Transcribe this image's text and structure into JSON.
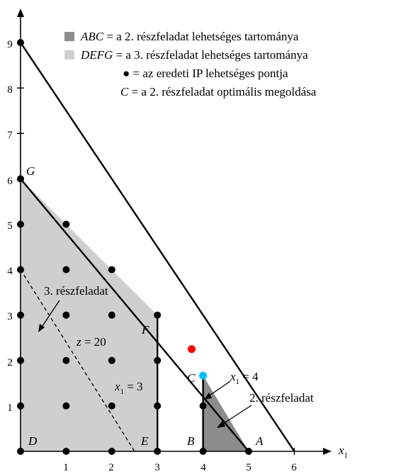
{
  "axes": {
    "x_label_main": "x",
    "x_label_sub": "1",
    "x_ticks": [
      "1",
      "2",
      "3",
      "4",
      "5",
      "6"
    ],
    "y_ticks": [
      "1",
      "2",
      "3",
      "4",
      "5",
      "6",
      "7",
      "8",
      "9"
    ]
  },
  "legend": {
    "items": [
      {
        "prefix": "ABC",
        "text": " = a 2. részfeladat lehetséges tartománya",
        "swatch_color": "#8c8c8c"
      },
      {
        "prefix": "DEFG",
        "text": " = a 3. részfeladat lehetséges tartománya",
        "swatch_color": "#cfcfcf"
      },
      {
        "prefix": "●",
        "text": " = az eredeti IP lehetséges pontja",
        "swatch_color": ""
      },
      {
        "prefix": "C",
        "text": " = a 2. részfeladat optimális megoldása",
        "swatch_color": ""
      }
    ]
  },
  "point_labels": {
    "A": "A",
    "B": "B",
    "C": "C",
    "D": "D",
    "E": "E",
    "F": "F",
    "G": "G"
  },
  "annotations": {
    "subproblem3": "3. részfeladat",
    "subproblem2": "2. részfeladat",
    "z_label_var": "z",
    "z_label_eq": " = 20",
    "x1_eq_3_var": "x",
    "x1_eq_3_sub": "1",
    "x1_eq_3_rest": " = 3",
    "x1_eq_4_var": "x",
    "x1_eq_4_sub": "1",
    "x1_eq_4_rest": " = 4"
  },
  "colors": {
    "region_abc": "#8c8c8c",
    "region_defg": "#cfcfcf",
    "intersection_point": "#ff0000",
    "optimal_point": "#00bfff"
  },
  "chart_data": {
    "type": "scatter",
    "x_range": [
      0,
      6
    ],
    "y_range": [
      0,
      9
    ],
    "lattice_points": [
      [
        0,
        0
      ],
      [
        1,
        0
      ],
      [
        2,
        0
      ],
      [
        3,
        0
      ],
      [
        4,
        0
      ],
      [
        5,
        0
      ],
      [
        0,
        1
      ],
      [
        1,
        1
      ],
      [
        2,
        1
      ],
      [
        3,
        1
      ],
      [
        4,
        1
      ],
      [
        0,
        2
      ],
      [
        1,
        2
      ],
      [
        2,
        2
      ],
      [
        3,
        2
      ],
      [
        0,
        3
      ],
      [
        1,
        3
      ],
      [
        2,
        3
      ],
      [
        3,
        3
      ],
      [
        0,
        4
      ],
      [
        1,
        4
      ],
      [
        2,
        4
      ],
      [
        0,
        5
      ],
      [
        1,
        5
      ],
      [
        0,
        6
      ],
      [
        0,
        9
      ]
    ],
    "region_ABC": [
      [
        4,
        0
      ],
      [
        5,
        0
      ],
      [
        4,
        1.667
      ]
    ],
    "region_DEFG": [
      [
        0,
        0
      ],
      [
        3,
        0
      ],
      [
        3,
        3
      ],
      [
        0,
        6
      ]
    ],
    "constraint_lines": [
      {
        "from": [
          0,
          9
        ],
        "to": [
          6,
          0
        ]
      },
      {
        "from": [
          0,
          6
        ],
        "to": [
          5,
          0
        ]
      }
    ],
    "z20_line": {
      "from": [
        0,
        4
      ],
      "to": [
        2.5,
        0
      ]
    },
    "intersection_point": [
      3.75,
      2.25
    ],
    "optimal_point_C": [
      4,
      1.667
    ]
  }
}
